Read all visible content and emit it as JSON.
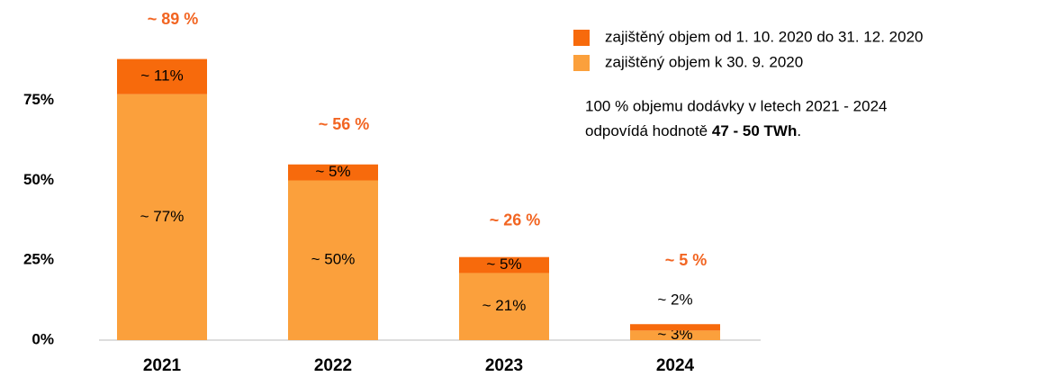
{
  "chart_data": {
    "type": "stacked_bar",
    "categories": [
      "2021",
      "2022",
      "2023",
      "2024"
    ],
    "series": [
      {
        "name": "zajištěný objem k 30. 9. 2020",
        "color": "#fba03c",
        "values": [
          77,
          50,
          21,
          3
        ],
        "value_labels": [
          "~ 77%",
          "~ 50%",
          "~ 21%",
          "~ 3%"
        ]
      },
      {
        "name": "zajištěný objem od 1. 10. 2020 do 31. 12. 2020",
        "color": "#f76a0c",
        "values": [
          11,
          5,
          5,
          2
        ],
        "value_labels": [
          "~ 11%",
          "~ 5%",
          "~ 5%",
          "~ 2%"
        ]
      }
    ],
    "totals": [
      89,
      56,
      26,
      5
    ],
    "total_labels": [
      "~ 89 %",
      "~ 56 %",
      "~ 26 %",
      "~ 5 %"
    ],
    "ylim": [
      0,
      100
    ],
    "yticks": [
      {
        "value": 0,
        "label": "0%"
      },
      {
        "value": 25,
        "label": "25%"
      },
      {
        "value": 50,
        "label": "50%"
      },
      {
        "value": 75,
        "label": "75%"
      }
    ],
    "grid": false,
    "note": {
      "line1": "100 % objemu dodávky v letech 2021 - 2024",
      "line2_text": "odpovídá hodnotě ",
      "line2_bold": "47 - 50 TWh",
      "line2_end": "."
    }
  }
}
